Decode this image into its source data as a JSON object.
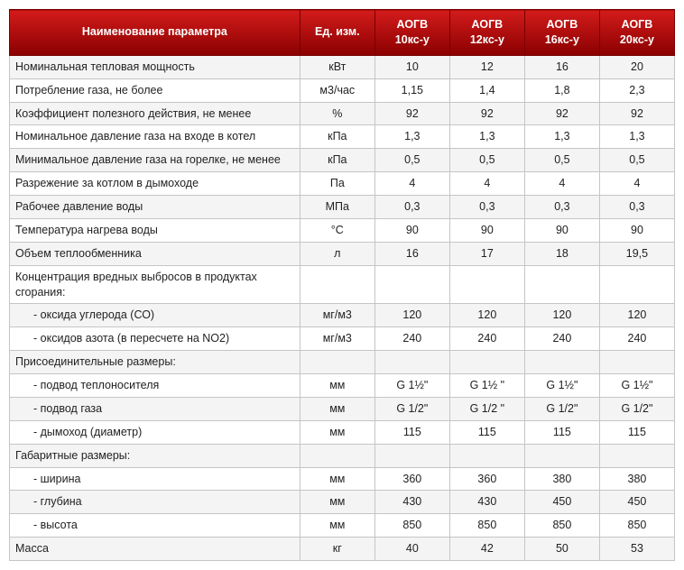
{
  "header_bg_gradient_top": "#d31b1b",
  "header_bg_gradient_bottom": "#8a0000",
  "columns": [
    {
      "key": "param",
      "label": "Наименование параметра"
    },
    {
      "key": "unit",
      "label": "Ед. изм."
    },
    {
      "key": "m10",
      "label": "АОГВ 10кс-у"
    },
    {
      "key": "m12",
      "label": "АОГВ 12кс-у"
    },
    {
      "key": "m16",
      "label": "АОГВ 16кс-у"
    },
    {
      "key": "m20",
      "label": "АОГВ 20кс-у"
    }
  ],
  "rows": [
    {
      "param": "Номинальная тепловая мощность",
      "unit": "кВт",
      "vals": [
        "10",
        "12",
        "16",
        "20"
      ]
    },
    {
      "param": "Потребление газа, не более",
      "unit": "м3/час",
      "vals": [
        "1,15",
        "1,4",
        "1,8",
        "2,3"
      ]
    },
    {
      "param": "Коэффициент полезного действия, не менее",
      "unit": "%",
      "vals": [
        "92",
        "92",
        "92",
        "92"
      ]
    },
    {
      "param": "Номинальное давление газа на входе в котел",
      "unit": "кПа",
      "vals": [
        "1,3",
        "1,3",
        "1,3",
        "1,3"
      ]
    },
    {
      "param": "Минимальное давление газа на горелке, не менее",
      "unit": "кПа",
      "vals": [
        "0,5",
        "0,5",
        "0,5",
        "0,5"
      ]
    },
    {
      "param": "Разрежение за котлом в дымоходе",
      "unit": "Па",
      "vals": [
        "4",
        "4",
        "4",
        "4"
      ]
    },
    {
      "param": "Рабочее давление воды",
      "unit": "МПа",
      "vals": [
        "0,3",
        "0,3",
        "0,3",
        "0,3"
      ]
    },
    {
      "param": "Температура нагрева воды",
      "unit": "°С",
      "vals": [
        "90",
        "90",
        "90",
        "90"
      ]
    },
    {
      "param": "Объем теплообменника",
      "unit": "л",
      "vals": [
        "16",
        "17",
        "18",
        "19,5"
      ]
    },
    {
      "param": "Концентрация вредных выбросов в продуктах сгорания:",
      "section": true
    },
    {
      "param": "- оксида углерода (СО)",
      "indent": true,
      "unit": "мг/м3",
      "vals": [
        "120",
        "120",
        "120",
        "120"
      ]
    },
    {
      "param": "- оксидов азота (в пересчете на NO2)",
      "indent": true,
      "unit": "мг/м3",
      "vals": [
        "240",
        "240",
        "240",
        "240"
      ]
    },
    {
      "param": "Присоединительные размеры:",
      "section": true
    },
    {
      "param": "- подвод теплоносителя",
      "indent": true,
      "unit": "мм",
      "vals": [
        "G 1½\"",
        "G 1½ \"",
        "G 1½\"",
        "G 1½\""
      ]
    },
    {
      "param": "- подвод газа",
      "indent": true,
      "unit": "мм",
      "vals": [
        "G 1/2\"",
        "G 1/2 \"",
        "G 1/2\"",
        "G 1/2\""
      ]
    },
    {
      "param": "- дымоход (диаметр)",
      "indent": true,
      "unit": "мм",
      "vals": [
        "115",
        "115",
        "115",
        "115"
      ]
    },
    {
      "param": "Габаритные размеры:",
      "section": true
    },
    {
      "param": "- ширина",
      "indent": true,
      "unit": "мм",
      "vals": [
        "360",
        "360",
        "380",
        "380"
      ]
    },
    {
      "param": "- глубина",
      "indent": true,
      "unit": "мм",
      "vals": [
        "430",
        "430",
        "450",
        "450"
      ]
    },
    {
      "param": "- высота",
      "indent": true,
      "unit": "мм",
      "vals": [
        "850",
        "850",
        "850",
        "850"
      ]
    },
    {
      "param": "Масса",
      "unit": "кг",
      "vals": [
        "40",
        "42",
        "50",
        "53"
      ]
    }
  ]
}
